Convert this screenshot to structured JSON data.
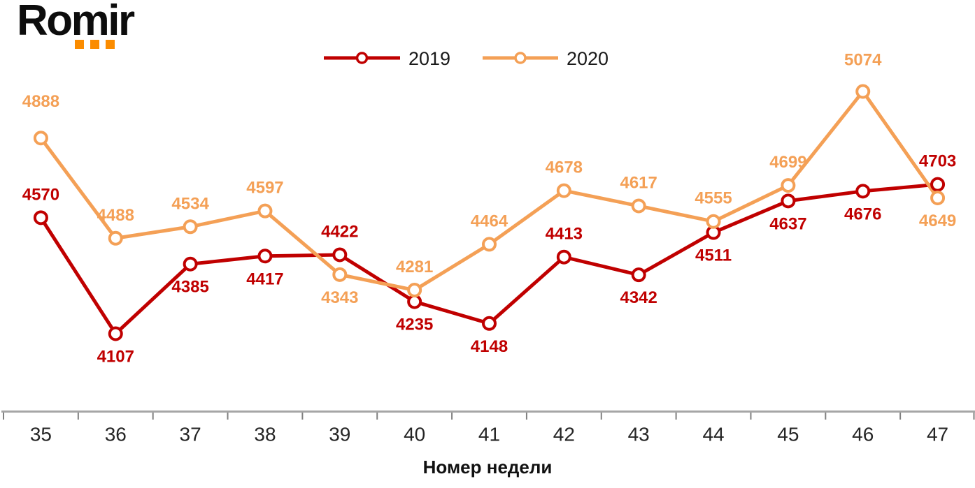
{
  "logo": {
    "text": "Romir"
  },
  "colors": {
    "accent_red": "#C00000",
    "accent_orange": "#F4A056",
    "logo_dot": "#FB8C00",
    "axis_line": "#A6A6A6",
    "tick": "#808080",
    "tick_text": "#262626",
    "axis_title_text": "#111111",
    "legend_text": "#1a1a1a"
  },
  "chart_data": {
    "type": "line",
    "title": "",
    "xlabel": "Номер недели",
    "ylabel": "",
    "categories": [
      "35",
      "36",
      "37",
      "38",
      "39",
      "40",
      "41",
      "42",
      "43",
      "44",
      "45",
      "46",
      "47"
    ],
    "series": [
      {
        "name": "2019",
        "color": "#C00000",
        "values": [
          4570,
          4107,
          4385,
          4417,
          4422,
          4235,
          4148,
          4413,
          4342,
          4511,
          4637,
          4676,
          4703
        ],
        "label_side": [
          "above",
          "below",
          "below",
          "below",
          "above",
          "below",
          "below",
          "above",
          "below",
          "below",
          "below",
          "below",
          "above"
        ]
      },
      {
        "name": "2020",
        "color": "#F4A056",
        "values": [
          4888,
          4488,
          4534,
          4597,
          4343,
          4281,
          4464,
          4678,
          4617,
          4555,
          4699,
          5074,
          4649
        ],
        "label_side": [
          "above",
          "above",
          "above",
          "above",
          "below",
          "above",
          "above",
          "above",
          "above",
          "above",
          "above",
          "above",
          "below"
        ]
      }
    ],
    "legend": [
      "2019",
      "2020"
    ],
    "legend_position": "top-center",
    "grid": false,
    "data_labels": true,
    "y_axis": {
      "visible": false,
      "approx_range": [
        4050,
        5150
      ]
    },
    "x_axis": {
      "visible": true,
      "ticks_between_categories": true
    }
  }
}
